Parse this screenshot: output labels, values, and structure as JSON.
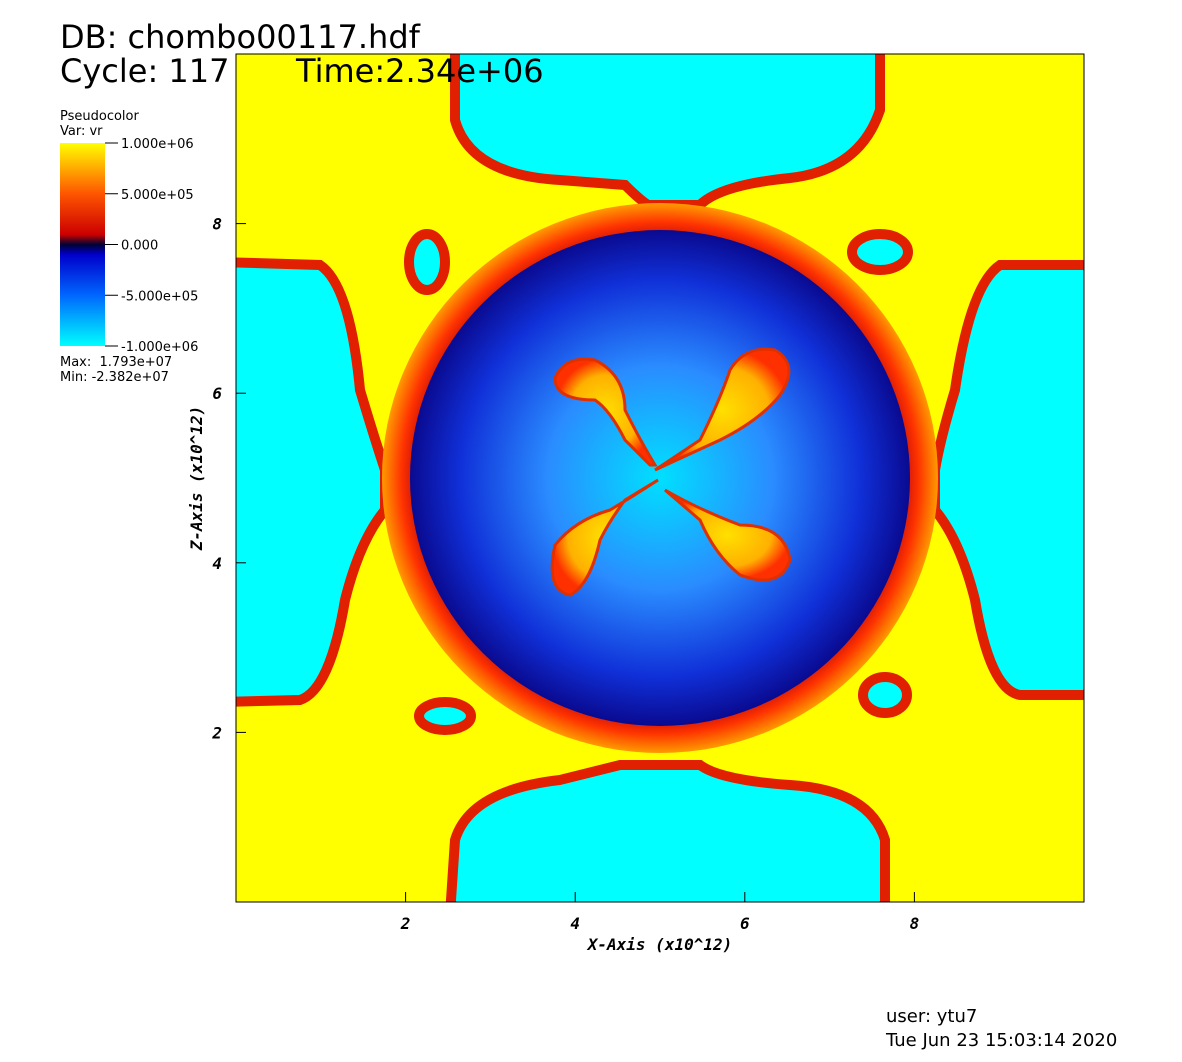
{
  "chart_data": {
    "type": "pseudocolor",
    "db_title": "DB: chombo00117.hdf",
    "cycle": "Cycle: 117",
    "time": "Time:2.34e+06",
    "legend": {
      "title": "Pseudocolor",
      "variable": "Var: vr",
      "max": "Max:  1.793e+07",
      "min": "Min: -2.382e+07",
      "range": [
        -1000000,
        1000000
      ],
      "ticks": [
        {
          "value": 1000000,
          "label": "1.000e+06"
        },
        {
          "value": 500000,
          "label": "5.000e+05"
        },
        {
          "value": 0,
          "label": "0.000"
        },
        {
          "value": -500000,
          "label": "-5.000e+05"
        },
        {
          "value": -1000000,
          "label": "-1.000e+06"
        }
      ]
    },
    "x_label": "X-Axis (x10^12)",
    "y_label": "Z-Axis (x10^12)",
    "xlim": [
      0,
      10
    ],
    "ylim": [
      0,
      10
    ],
    "xticks": [
      2,
      4,
      6,
      8
    ],
    "yticks": [
      2,
      4,
      6,
      8
    ],
    "user": "user: ytu7",
    "date": "Tue Jun 23 15:03:14 2020"
  }
}
